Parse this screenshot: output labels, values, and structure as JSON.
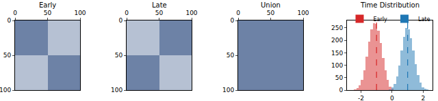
{
  "chart_data": [
    {
      "type": "heatmap",
      "title": "Early",
      "x": [
        25,
        75
      ],
      "y": [
        25,
        75
      ],
      "cells": [
        [
          0.6,
          0.3
        ],
        [
          0.3,
          0.6
        ]
      ],
      "zlim": [
        0,
        1
      ],
      "color": "#0b2f6b",
      "xlim": [
        0,
        100
      ],
      "ylim": [
        100,
        0
      ],
      "xticks": [
        0,
        50,
        100
      ],
      "yticks": [
        0,
        50,
        100
      ]
    },
    {
      "type": "heatmap",
      "title": "Late",
      "x": [
        25,
        75
      ],
      "y": [
        25,
        75
      ],
      "cells": [
        [
          0.3,
          0.6
        ],
        [
          0.6,
          0.3
        ]
      ],
      "zlim": [
        0,
        1
      ],
      "color": "#0b2f6b",
      "xlim": [
        0,
        100
      ],
      "ylim": [
        100,
        0
      ],
      "xticks": [
        0,
        50,
        100
      ],
      "yticks": [
        0,
        50,
        100
      ]
    },
    {
      "type": "heatmap",
      "title": "Union",
      "x": [
        25,
        75
      ],
      "y": [
        25,
        75
      ],
      "cells": [
        [
          0.6,
          0.6
        ],
        [
          0.6,
          0.6
        ]
      ],
      "zlim": [
        0,
        1
      ],
      "color": "#0b2f6b",
      "xlim": [
        0,
        100
      ],
      "ylim": [
        100,
        0
      ],
      "xticks": [
        0,
        50,
        100
      ],
      "yticks": [
        0,
        50,
        100
      ]
    },
    {
      "type": "histogram",
      "title": "Time Distribution",
      "series": [
        {
          "name": "Early",
          "color": "#d62728",
          "bins": [
            -2.6,
            -2.45,
            -2.3,
            -2.15,
            -2.0,
            -1.85,
            -1.7,
            -1.55,
            -1.4,
            -1.25,
            -1.1,
            -0.95,
            -0.8,
            -0.65,
            -0.5,
            -0.35,
            -0.2,
            -0.05,
            0.1
          ],
          "values": [
            1,
            2,
            7,
            18,
            40,
            80,
            135,
            195,
            245,
            270,
            265,
            240,
            190,
            130,
            80,
            40,
            15,
            5
          ],
          "mean": -1,
          "line_style": "dashed"
        },
        {
          "name": "Late",
          "color": "#1f77b4",
          "bins": [
            -0.2,
            -0.05,
            0.1,
            0.25,
            0.4,
            0.55,
            0.7,
            0.85,
            1.0,
            1.15,
            1.3,
            1.45,
            1.6,
            1.75,
            1.9,
            2.05,
            2.2,
            2.35,
            2.5
          ],
          "values": [
            3,
            10,
            25,
            55,
            100,
            160,
            215,
            250,
            245,
            210,
            160,
            105,
            60,
            30,
            12,
            5,
            2,
            1
          ],
          "mean": 1,
          "line_style": "dashed"
        }
      ],
      "xlim": [
        -2.9,
        2.6
      ],
      "xticks": [
        -2,
        0,
        2
      ],
      "ylim": [
        0,
        280
      ],
      "yticks": [
        0,
        50,
        100,
        150,
        200,
        250
      ],
      "legend": "top"
    }
  ]
}
